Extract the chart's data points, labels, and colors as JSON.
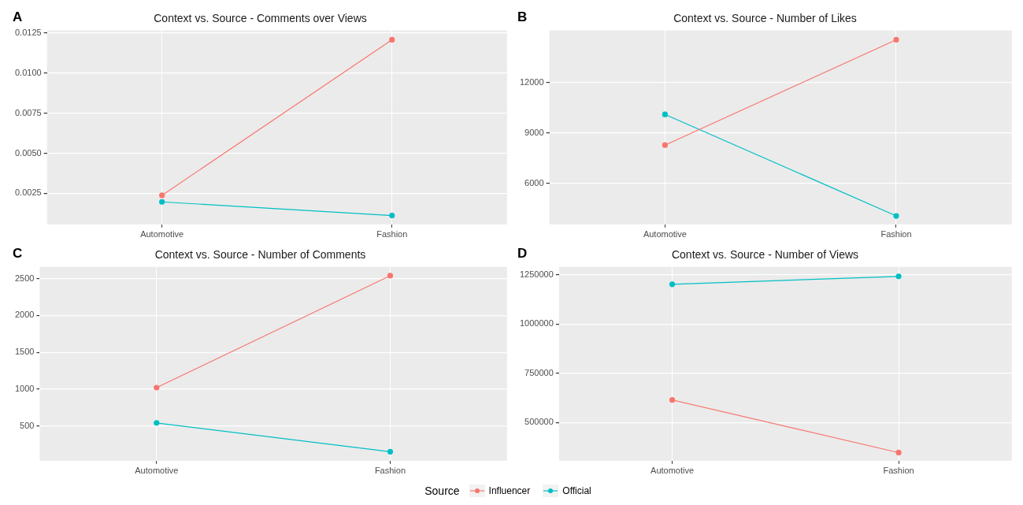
{
  "chart_data": [
    {
      "type": "line",
      "title": "Context vs. Source - Comments over Views",
      "annotations": [
        "A"
      ],
      "categories": [
        "Automotive",
        "Fashion"
      ],
      "ylim": [
        0.00057,
        0.01264
      ],
      "yticks": [
        0.0025,
        {
          "value": 0.005,
          "label": "0.0050"
        },
        0.0075,
        {
          "value": 0.01,
          "label": "0.0100"
        },
        0.0125
      ],
      "grid": true,
      "marker": "circle",
      "legend": "bottom",
      "legend_title": "Source",
      "series": [
        {
          "name": "Influencer",
          "color": "#f8766d",
          "values": [
            0.00238,
            0.01207
          ]
        },
        {
          "name": "Official",
          "color": "#00bfc4",
          "values": [
            0.00197,
            0.00112
          ]
        }
      ]
    },
    {
      "type": "line",
      "title": "Context vs. Source - Number of Likes",
      "annotations": [
        "B"
      ],
      "categories": [
        "Automotive",
        "Fashion"
      ],
      "ylim": [
        3565,
        15097
      ],
      "yticks": [
        6000,
        9000,
        12000
      ],
      "grid": true,
      "marker": "circle",
      "series": [
        {
          "color": "#f8766d",
          "values": [
            8280,
            14550
          ]
        },
        {
          "color": "#00bfc4",
          "values": [
            10110,
            4070
          ]
        }
      ]
    },
    {
      "type": "line",
      "title": "Context vs. Source - Number of Comments",
      "annotations": [
        "C"
      ],
      "categories": [
        "Automotive",
        "Fashion"
      ],
      "ylim": [
        27,
        2659
      ],
      "yticks": [
        500,
        1000,
        1500,
        2000,
        2500
      ],
      "grid": true,
      "marker": "circle",
      "series": [
        {
          "color": "#f8766d",
          "values": [
            1020,
            2540
          ]
        },
        {
          "color": "#00bfc4",
          "values": [
            540,
            150
          ]
        }
      ]
    },
    {
      "type": "line",
      "title": "Context vs. Source - Number of Views",
      "annotations": [
        "D"
      ],
      "categories": [
        "Automotive",
        "Fashion"
      ],
      "ylim": [
        306700,
        1290000
      ],
      "yticks": [
        500000,
        750000,
        1000000,
        1250000
      ],
      "grid": true,
      "marker": "circle",
      "series": [
        {
          "color": "#f8766d",
          "values": [
            615000,
            348000
          ]
        },
        {
          "color": "#00bfc4",
          "values": [
            1202000,
            1242000
          ]
        }
      ]
    }
  ]
}
